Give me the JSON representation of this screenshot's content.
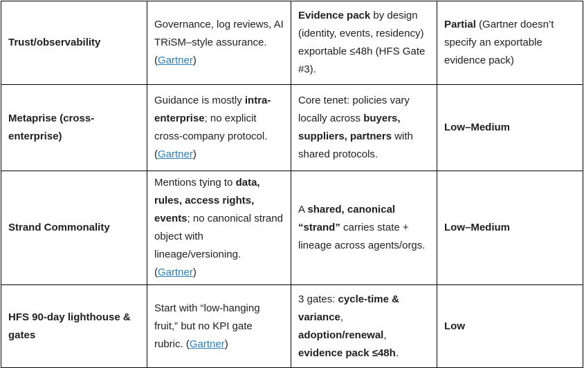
{
  "colors": {
    "link": "#2980b9",
    "text": "#202020",
    "border": "#000000"
  },
  "table": {
    "rows": [
      {
        "cells": [
          [
            {
              "t": "Trust/observability",
              "b": true
            }
          ],
          [
            {
              "t": "Governance, log reviews, AI TRiSM–style assurance. ("
            },
            {
              "t": "Gartner",
              "link": true
            },
            {
              "t": ")"
            }
          ],
          [
            {
              "t": "Evidence pack",
              "b": true
            },
            {
              "t": " by design (identity, events, residency) exportable ≤48h (HFS Gate #3)."
            }
          ],
          [
            {
              "t": "Partial",
              "b": true
            },
            {
              "t": " (Gartner doesn’t specify an exportable evidence pack)"
            }
          ]
        ]
      },
      {
        "cells": [
          [
            {
              "t": "Metaprise (cross-enterprise)",
              "b": true
            }
          ],
          [
            {
              "t": "Guidance is mostly "
            },
            {
              "t": "intra-enterprise",
              "b": true
            },
            {
              "t": "; no explicit cross-company protocol. ("
            },
            {
              "t": "Gartner",
              "link": true
            },
            {
              "t": ")"
            }
          ],
          [
            {
              "t": "Core tenet: policies vary locally across "
            },
            {
              "t": "buyers, suppliers, partners",
              "b": true
            },
            {
              "t": " with shared protocols."
            }
          ],
          [
            {
              "t": "Low–Medium",
              "b": true
            }
          ]
        ]
      },
      {
        "cells": [
          [
            {
              "t": "Strand Commonality",
              "b": true
            }
          ],
          [
            {
              "t": "Mentions tying to "
            },
            {
              "t": "data, rules, access rights, events",
              "b": true
            },
            {
              "t": "; no canonical strand object with lineage/versioning. ("
            },
            {
              "t": "Gartner",
              "link": true
            },
            {
              "t": ")"
            }
          ],
          [
            {
              "t": "A "
            },
            {
              "t": "shared, canonical “strand”",
              "b": true
            },
            {
              "t": " carries state + lineage across agents/orgs."
            }
          ],
          [
            {
              "t": "Low–Medium",
              "b": true
            }
          ]
        ]
      },
      {
        "cells": [
          [
            {
              "t": "HFS 90-day lighthouse & gates",
              "b": true
            }
          ],
          [
            {
              "t": "Start with “low-hanging fruit,” but no KPI gate rubric. ("
            },
            {
              "t": "Gartner",
              "link": true
            },
            {
              "t": ")"
            }
          ],
          [
            {
              "t": "3 gates: "
            },
            {
              "t": "cycle-time & variance",
              "b": true
            },
            {
              "t": ", "
            },
            {
              "t": "adoption/renewal",
              "b": true
            },
            {
              "t": ", "
            },
            {
              "t": "evidence pack ≤48h",
              "b": true
            },
            {
              "t": "."
            }
          ],
          [
            {
              "t": "Low",
              "b": true
            }
          ]
        ]
      }
    ]
  }
}
